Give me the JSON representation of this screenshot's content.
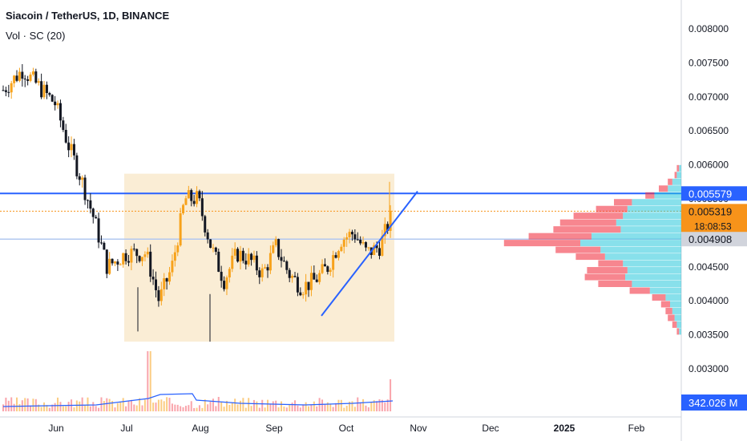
{
  "header": {
    "title": "Siacoin / TetherUS, 1D, BINANCE",
    "subtitle": "Vol · SC (20)"
  },
  "colors": {
    "up": "#f7a21b",
    "down": "#131722",
    "resistance": "#2962ff",
    "trend": "#2962ff",
    "range_box": "#f5deb3",
    "vp_up": "#26c6da",
    "vp_down": "#f23645",
    "vol_ma": "#2962ff",
    "badge_price": "#f7931a",
    "badge_resist": "#2962ff",
    "badge_support": "#d1d4dc"
  },
  "chart_data": {
    "type": "candlestick",
    "title": "Siacoin / TetherUS, 1D, BINANCE",
    "x_labels": [
      "Jun",
      "Jul",
      "Aug",
      "Sep",
      "Oct",
      "Nov",
      "Dec",
      "2025",
      "Feb"
    ],
    "y_ticks": [
      "0.008000",
      "0.007500",
      "0.007000",
      "0.006500",
      "0.006000",
      "0.005500",
      "0.005000",
      "0.004500",
      "0.004000",
      "0.003500",
      "0.003000"
    ],
    "ylim": [
      0.0026,
      0.0084
    ],
    "price_path": [
      [
        0,
        0.0071
      ],
      [
        15,
        0.0074
      ],
      [
        30,
        0.0071
      ],
      [
        40,
        0.0069
      ],
      [
        50,
        0.0063
      ],
      [
        60,
        0.0058
      ],
      [
        70,
        0.0052
      ],
      [
        80,
        0.0045
      ],
      [
        95,
        0.0047
      ],
      [
        110,
        0.0047
      ],
      [
        120,
        0.004
      ],
      [
        130,
        0.0045
      ],
      [
        140,
        0.0055
      ],
      [
        150,
        0.0055
      ],
      [
        160,
        0.0048
      ],
      [
        170,
        0.0043
      ],
      [
        180,
        0.0047
      ],
      [
        190,
        0.0046
      ],
      [
        200,
        0.0044
      ],
      [
        210,
        0.0048
      ],
      [
        220,
        0.0044
      ],
      [
        230,
        0.0042
      ],
      [
        240,
        0.0043
      ],
      [
        250,
        0.0045
      ],
      [
        260,
        0.0049
      ],
      [
        270,
        0.005
      ],
      [
        280,
        0.0047
      ],
      [
        290,
        0.0048
      ],
      [
        300,
        0.0053
      ]
    ],
    "last_price": "0.005319",
    "countdown": "18:08:53",
    "resistance_level": "0.005579",
    "support_level": "0.004908",
    "volume_label": "342.026 M",
    "volume_profile": [
      {
        "price": 0.00595,
        "buy": 1,
        "sell": 1
      },
      {
        "price": 0.00585,
        "buy": 2,
        "sell": 1
      },
      {
        "price": 0.00575,
        "buy": 4,
        "sell": 2
      },
      {
        "price": 0.00565,
        "buy": 6,
        "sell": 4
      },
      {
        "price": 0.00555,
        "buy": 12,
        "sell": 4
      },
      {
        "price": 0.00545,
        "buy": 22,
        "sell": 8
      },
      {
        "price": 0.00535,
        "buy": 24,
        "sell": 14
      },
      {
        "price": 0.00525,
        "buy": 26,
        "sell": 22
      },
      {
        "price": 0.00515,
        "buy": 29,
        "sell": 25
      },
      {
        "price": 0.00505,
        "buy": 27,
        "sell": 30
      },
      {
        "price": 0.00495,
        "buy": 40,
        "sell": 28
      },
      {
        "price": 0.00485,
        "buy": 45,
        "sell": 34
      },
      {
        "price": 0.00475,
        "buy": 36,
        "sell": 20
      },
      {
        "price": 0.00465,
        "buy": 34,
        "sell": 13
      },
      {
        "price": 0.00455,
        "buy": 26,
        "sell": 11
      },
      {
        "price": 0.00445,
        "buy": 24,
        "sell": 18
      },
      {
        "price": 0.00435,
        "buy": 25,
        "sell": 18
      },
      {
        "price": 0.00425,
        "buy": 22,
        "sell": 15
      },
      {
        "price": 0.00415,
        "buy": 14,
        "sell": 9
      },
      {
        "price": 0.00405,
        "buy": 7,
        "sell": 6
      },
      {
        "price": 0.00395,
        "buy": 5,
        "sell": 4
      },
      {
        "price": 0.00385,
        "buy": 4,
        "sell": 3
      },
      {
        "price": 0.00375,
        "buy": 3,
        "sell": 3
      },
      {
        "price": 0.00365,
        "buy": 2,
        "sell": 2
      },
      {
        "price": 0.00355,
        "buy": 1,
        "sell": 1
      }
    ]
  }
}
